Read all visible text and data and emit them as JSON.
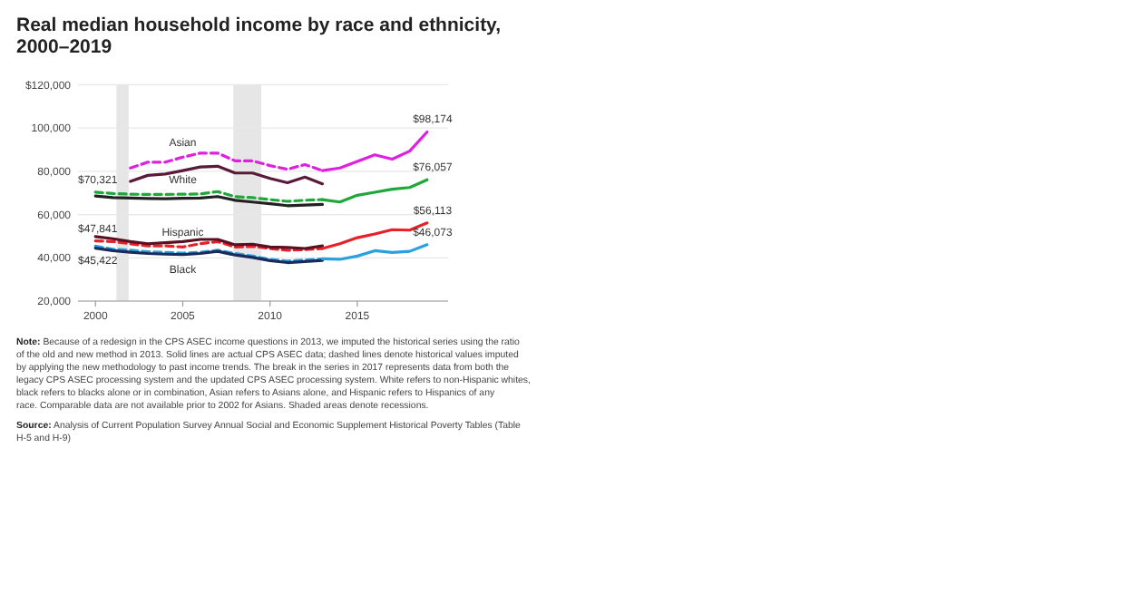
{
  "chart_data": {
    "type": "line",
    "title": "Real median household income by race and ethnicity, 2000–2019",
    "xlim": [
      1999,
      2020.2
    ],
    "xticks": [
      2000,
      2005,
      2010,
      2015
    ],
    "ylim": [
      20000,
      120000
    ],
    "yticks": [
      {
        "value": 20000,
        "label": "20,000"
      },
      {
        "value": 40000,
        "label": "40,000"
      },
      {
        "value": 60000,
        "label": "60,000"
      },
      {
        "value": 80000,
        "label": "80,000"
      },
      {
        "value": 100000,
        "label": "100,000"
      },
      {
        "value": 120000,
        "label": "$120,000"
      }
    ],
    "grid": "y",
    "bands": [
      {
        "axis": "x",
        "from": 2001.2,
        "to": 2001.9,
        "color": "#e6e6e6"
      },
      {
        "axis": "x",
        "from": 2007.9,
        "to": 2009.5,
        "color": "#e6e6e6"
      }
    ],
    "series": [
      {
        "name": "Asian",
        "color": "#e020e0",
        "line_style": "dashed",
        "x": [
          2002,
          2003,
          2004,
          2005,
          2006,
          2007,
          2008,
          2009,
          2010,
          2011,
          2012,
          2013
        ],
        "values": [
          81500,
          84200,
          84200,
          86500,
          88400,
          88400,
          84800,
          84800,
          82600,
          80900,
          83100,
          80300
        ]
      },
      {
        "color": "#5a1a3a",
        "line_style": "solid",
        "x": [
          2002,
          2003,
          2004,
          2005,
          2006,
          2007,
          2008,
          2009,
          2010,
          2011,
          2012,
          2013
        ],
        "values": [
          75300,
          78100,
          78700,
          80300,
          82000,
          82300,
          79200,
          79200,
          76700,
          74700,
          77300,
          74200
        ]
      },
      {
        "color": "#e020e0",
        "line_style": "solid",
        "x": [
          2013,
          2014,
          2015,
          2016,
          2017,
          2018,
          2019
        ],
        "values": [
          80300,
          81500,
          84500,
          87600,
          85600,
          89300,
          98174
        ],
        "value_labels": [
          null,
          null,
          null,
          null,
          null,
          null,
          "$98,174"
        ]
      },
      {
        "name": "White",
        "color": "#1fa83a",
        "line_style": "dashed",
        "x": [
          2000,
          2001,
          2002,
          2003,
          2004,
          2005,
          2006,
          2007,
          2008,
          2009,
          2010,
          2011,
          2012,
          2013
        ],
        "values": [
          70321,
          69700,
          69400,
          69300,
          69300,
          69400,
          69500,
          70600,
          68300,
          67800,
          66900,
          66100,
          66600,
          66900
        ],
        "value_labels": [
          "$70,321",
          null,
          null,
          null,
          null,
          null,
          null,
          null,
          null,
          null,
          null,
          null,
          null,
          null
        ]
      },
      {
        "color": "#222222",
        "line_style": "solid",
        "x": [
          2000,
          2001,
          2002,
          2003,
          2004,
          2005,
          2006,
          2007,
          2008,
          2009,
          2010,
          2011,
          2012,
          2013
        ],
        "values": [
          68600,
          67800,
          67600,
          67400,
          67300,
          67500,
          67600,
          68300,
          66600,
          65800,
          65000,
          64100,
          64400,
          64700
        ]
      },
      {
        "color": "#1fa83a",
        "line_style": "solid",
        "x": [
          2013,
          2014,
          2015,
          2016,
          2017,
          2018,
          2019
        ],
        "values": [
          66900,
          65800,
          68900,
          70300,
          71700,
          72500,
          76057
        ],
        "value_labels": [
          null,
          null,
          null,
          null,
          null,
          null,
          "$76,057"
        ]
      },
      {
        "name": "Hispanic",
        "color": "#e8202a",
        "line_style": "dashed",
        "x": [
          2000,
          2001,
          2002,
          2003,
          2004,
          2005,
          2006,
          2007,
          2008,
          2009,
          2010,
          2011,
          2012,
          2013
        ],
        "values": [
          47841,
          47500,
          46500,
          45500,
          45500,
          45000,
          46500,
          47500,
          45000,
          45300,
          44300,
          43500,
          43800,
          44300
        ],
        "value_labels": [
          "$47,841",
          null,
          null,
          null,
          null,
          null,
          null,
          null,
          null,
          null,
          null,
          null,
          null,
          null
        ]
      },
      {
        "color": "#5a1020",
        "line_style": "solid",
        "x": [
          2000,
          2001,
          2002,
          2003,
          2004,
          2005,
          2006,
          2007,
          2008,
          2009,
          2010,
          2011,
          2012,
          2013
        ],
        "values": [
          49800,
          48800,
          47500,
          46500,
          47000,
          47500,
          48500,
          48500,
          46000,
          46300,
          45000,
          44800,
          44300,
          45500
        ]
      },
      {
        "color": "#e8202a",
        "line_style": "solid",
        "x": [
          2013,
          2014,
          2015,
          2016,
          2017,
          2018,
          2019
        ],
        "values": [
          44300,
          46500,
          49300,
          51000,
          53000,
          52800,
          56113
        ],
        "value_labels": [
          null,
          null,
          null,
          null,
          null,
          null,
          "$56,113"
        ]
      },
      {
        "name": "Black",
        "color": "#2aa0e0",
        "line_style": "dashed",
        "x": [
          2000,
          2001,
          2002,
          2003,
          2004,
          2005,
          2006,
          2007,
          2008,
          2009,
          2010,
          2011,
          2012,
          2013
        ],
        "values": [
          45422,
          44000,
          43500,
          42800,
          42500,
          42200,
          42500,
          43500,
          42000,
          40800,
          39300,
          38500,
          39000,
          39500
        ],
        "value_labels": [
          "$45,422",
          null,
          null,
          null,
          null,
          null,
          null,
          null,
          null,
          null,
          null,
          null,
          null,
          null
        ]
      },
      {
        "color": "#1a2a5a",
        "line_style": "solid",
        "x": [
          2000,
          2001,
          2002,
          2003,
          2004,
          2005,
          2006,
          2007,
          2008,
          2009,
          2010,
          2011,
          2012,
          2013
        ],
        "values": [
          44500,
          43300,
          42600,
          42000,
          41700,
          41500,
          42000,
          43000,
          41300,
          40200,
          38700,
          37800,
          38300,
          38800
        ]
      },
      {
        "color": "#2aa0e0",
        "line_style": "solid",
        "x": [
          2013,
          2014,
          2015,
          2016,
          2017,
          2018,
          2019
        ],
        "values": [
          39500,
          39300,
          40800,
          43300,
          42500,
          43000,
          46073
        ],
        "value_labels": [
          null,
          null,
          null,
          null,
          null,
          null,
          "$46,073"
        ]
      }
    ],
    "annotations": [
      "Note: Because of a redesign in the CPS ASEC income questions in 2013, we imputed the historical series using the ratio of the old and new method in 2013. Solid lines are actual CPS ASEC data; dashed lines denote historical values imputed by applying the new methodology to past income trends. The break in the series in 2017 represents data from both the legacy CPS ASEC processing system and the updated CPS ASEC processing system. White refers to non-Hispanic whites, black refers to blacks alone or in combination, Asian refers to Asians alone, and Hispanic refers to Hispanics of any race. Comparable data are not available prior to 2002 for Asians. Shaded areas denote recessions.",
      "Source: Analysis of Current Population Survey Annual Social and Economic Supplement Historical Poverty Tables (Table H-5 and H-9)"
    ]
  }
}
